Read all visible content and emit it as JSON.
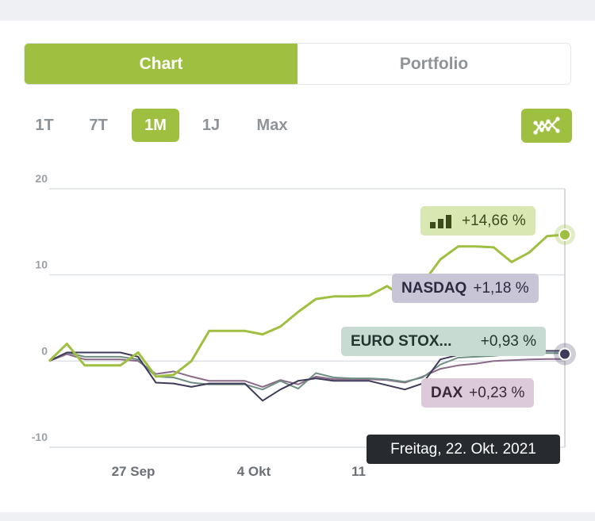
{
  "tabs": {
    "chart_label": "Chart",
    "portfolio_label": "Portfolio"
  },
  "ranges": [
    "1T",
    "7T",
    "1M",
    "1J",
    "Max"
  ],
  "active_range": "1M",
  "compare_button_icon": "line-graph-icon",
  "tooltip": "Freitag, 22. Okt. 2021",
  "colors": {
    "accent": "#9ebf3f",
    "nasdaq": "#3e3b5a",
    "euro": "#6f8f83",
    "dax": "#8a6a88"
  },
  "chart_data": {
    "type": "line",
    "y_ticks": [
      "20",
      "10",
      "0",
      "-10"
    ],
    "ylim": [
      -10,
      20
    ],
    "x_ticks": [
      "27 Sep",
      "4 Okt",
      "11"
    ],
    "grid": true,
    "series": [
      {
        "name": "Portfolio",
        "label": "+14,66 %",
        "values": [
          0,
          2,
          -0.5,
          -0.5,
          -0.5,
          1,
          -1.8,
          -1.6,
          0,
          3.5,
          3.5,
          3.5,
          3.1,
          4,
          5.7,
          7.2,
          7.5,
          7.5,
          7.6,
          8.7,
          7.3,
          9,
          11.8,
          13.3,
          13.3,
          13.2,
          11.5,
          12.6,
          14.5,
          14.66
        ]
      },
      {
        "name": "NASDAQ",
        "label": "+1,18 %",
        "values": [
          0,
          1,
          1,
          1,
          1,
          0.5,
          -2.5,
          -2.6,
          -3,
          -2.6,
          -2.6,
          -2.6,
          -4.6,
          -3.3,
          -2.3,
          -2,
          -2.3,
          -2.3,
          -2.3,
          -2.8,
          -3.3,
          -2.6,
          0.2,
          0.7,
          0.7,
          0.9,
          1.1,
          1.2,
          1.18,
          1.18
        ]
      },
      {
        "name": "EURO STOX...",
        "label": "+0,93 %",
        "values": [
          0,
          1,
          0.5,
          0.5,
          0.5,
          0.2,
          -1.8,
          -1.9,
          -2.5,
          -2.7,
          -2.7,
          -2.7,
          -3.3,
          -2.3,
          -3.2,
          -1.4,
          -1.9,
          -2,
          -2,
          -2.1,
          -2.4,
          -1.9,
          -0.4,
          0.4,
          0.5,
          0.6,
          0.8,
          0.9,
          0.93,
          0.93
        ]
      },
      {
        "name": "DAX",
        "label": "+0,23 %",
        "values": [
          0,
          0.8,
          0.2,
          0.2,
          0.2,
          0,
          -1.5,
          -1.2,
          -1.8,
          -2.3,
          -2.3,
          -2.3,
          -3.0,
          -2.2,
          -2.7,
          -1.8,
          -2.1,
          -2.1,
          -2.1,
          -2.2,
          -2.5,
          -1.8,
          -0.9,
          -0.5,
          -0.3,
          0,
          0.1,
          0.2,
          0.23,
          0.23
        ]
      }
    ]
  }
}
